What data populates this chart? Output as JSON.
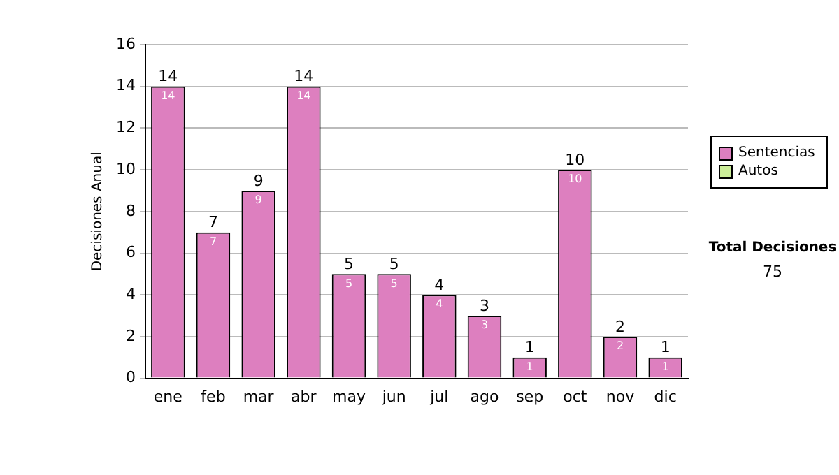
{
  "chart_data": {
    "type": "bar",
    "stacked": true,
    "ylabel": "Decisiones Anual",
    "categories": [
      "ene",
      "feb",
      "mar",
      "abr",
      "may",
      "jun",
      "jul",
      "ago",
      "sep",
      "oct",
      "nov",
      "dic"
    ],
    "series": [
      {
        "name": "Sentencias",
        "color": "#dd7fbf",
        "values": [
          14,
          7,
          9,
          14,
          5,
          5,
          4,
          3,
          1,
          10,
          2,
          1
        ],
        "value_labels": [
          "14",
          "7",
          "9",
          "14",
          "5",
          "5",
          "4",
          "3",
          "1",
          "10",
          "2",
          "1"
        ]
      },
      {
        "name": "Autos",
        "color": "#ccee99",
        "values": [
          0,
          0,
          0,
          0,
          0,
          0,
          0,
          0,
          0,
          0,
          0,
          0
        ]
      }
    ],
    "totals": [
      "14",
      "7",
      "9",
      "14",
      "5",
      "5",
      "4",
      "3",
      "1",
      "10",
      "2",
      "1"
    ],
    "ylim": [
      0,
      16
    ],
    "yticks": [
      0,
      2,
      4,
      6,
      8,
      10,
      12,
      14,
      16
    ],
    "grid": "y",
    "legend": "right",
    "annotations": [
      "Total Decisiones",
      "75"
    ]
  }
}
